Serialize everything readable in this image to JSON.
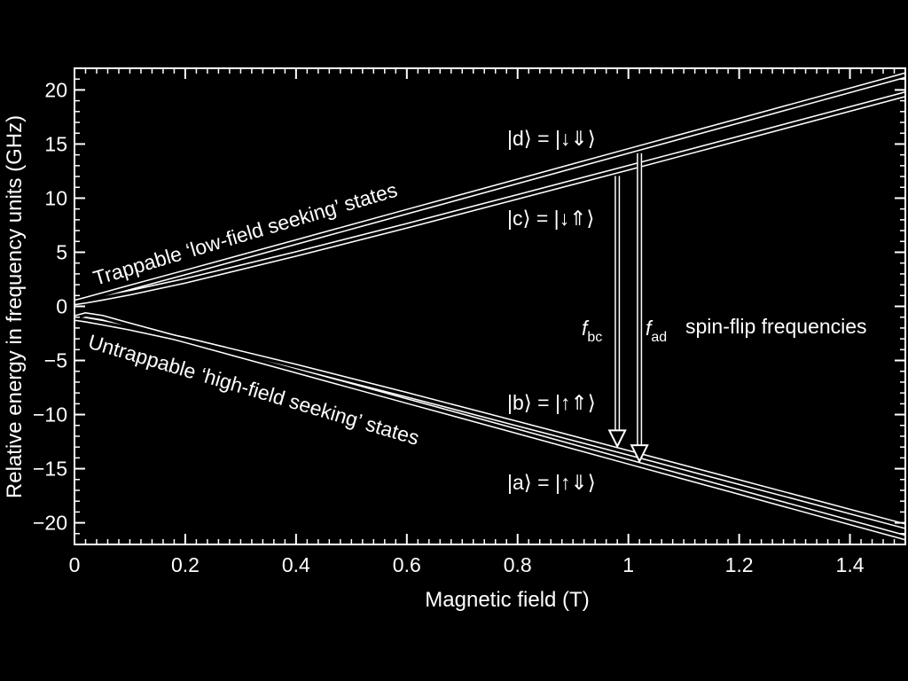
{
  "chart_data": {
    "type": "line",
    "xlabel": "Magnetic field (T)",
    "ylabel": "Relative energy in frequency units (GHz)",
    "xlim": [
      0,
      1.5
    ],
    "ylim": [
      -22,
      22
    ],
    "xticks": [
      {
        "v": 0,
        "label": "0"
      },
      {
        "v": 0.2,
        "label": "0.2"
      },
      {
        "v": 0.4,
        "label": "0.4"
      },
      {
        "v": 0.6,
        "label": "0.6"
      },
      {
        "v": 0.8,
        "label": "0.8"
      },
      {
        "v": 1,
        "label": "1"
      },
      {
        "v": 1.2,
        "label": "1.2"
      },
      {
        "v": 1.4,
        "label": "1.4"
      }
    ],
    "yticks": [
      {
        "v": 20,
        "label": "20"
      },
      {
        "v": 15,
        "label": "15"
      },
      {
        "v": 10,
        "label": "10"
      },
      {
        "v": 5,
        "label": "5"
      },
      {
        "v": 0,
        "label": "0"
      },
      {
        "v": -5,
        "label": "−5"
      },
      {
        "v": -10,
        "label": "−10"
      },
      {
        "v": -15,
        "label": "−15"
      },
      {
        "v": -20,
        "label": "−20"
      }
    ],
    "grid": false,
    "series": [
      {
        "x": [
          0,
          0.02,
          0.05,
          0.1,
          0.2,
          0.4,
          0.6,
          0.8,
          1.0,
          1.2,
          1.5
        ],
        "y": [
          0.36,
          0.62,
          1.04,
          1.75,
          3.14,
          5.94,
          8.75,
          11.55,
          14.36,
          17.16,
          21.36
        ]
      },
      {
        "x": [
          0,
          0.02,
          0.05,
          0.1,
          0.2,
          0.4,
          0.6,
          0.8,
          1.0,
          1.2,
          1.5
        ],
        "y": [
          0.36,
          0.51,
          0.78,
          1.26,
          2.36,
          4.84,
          7.45,
          10.12,
          12.81,
          15.52,
          19.6
        ]
      },
      {
        "x": [
          0,
          0.02,
          0.05,
          0.1,
          0.2,
          0.4,
          0.6,
          0.8,
          1.0,
          1.2,
          1.5
        ],
        "y": [
          -1.07,
          -0.8,
          -1.04,
          -1.75,
          -3.14,
          -5.94,
          -8.75,
          -11.55,
          -14.36,
          -17.16,
          -21.36
        ]
      },
      {
        "x": [
          0,
          0.02,
          0.05,
          0.1,
          0.2,
          0.4,
          0.6,
          0.8,
          1.0,
          1.2,
          1.5
        ],
        "y": [
          0.36,
          0.51,
          0.78,
          1.26,
          2.36,
          4.84,
          7.45,
          10.12,
          12.81,
          15.52,
          19.6
        ],
        "mirror": true
      }
    ],
    "annotations": {
      "state_d": "|d⟩ = |↓⇓⟩",
      "state_c": "|c⟩ = |↓⇑⟩",
      "state_b": "|b⟩ = |↑⇑⟩",
      "state_a": "|a⟩ = |↑⇓⟩",
      "low_field": "Trappable ‘low-field seeking’ states",
      "high_field": "Untrappable ‘high-field seeking’ states",
      "f_bc_base": "f",
      "f_bc_sub": "bc",
      "f_ad_base": "f",
      "f_ad_sub": "ad",
      "spin_flip": "spin-flip frequencies"
    }
  }
}
